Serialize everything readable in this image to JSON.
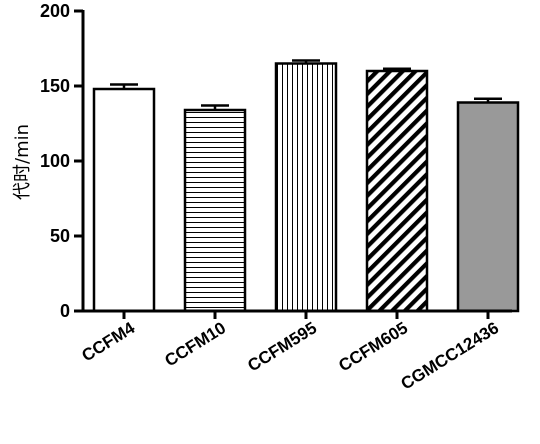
{
  "chart_data": {
    "type": "bar",
    "categories": [
      "CCFM4",
      "CCFM10",
      "CCFM595",
      "CCFM605",
      "CGMCC12436"
    ],
    "values": [
      148,
      134,
      165,
      160,
      139
    ],
    "errors": [
      3,
      3,
      2,
      1.5,
      2.5
    ],
    "patterns": [
      "solid-white",
      "horizontal-lines",
      "vertical-lines",
      "diagonal-lines",
      "solid-gray"
    ],
    "fill_colors": [
      "#ffffff",
      "#ffffff",
      "#ffffff",
      "#ffffff",
      "#999999"
    ],
    "ylabel": "代时/min",
    "ylim": [
      0,
      200
    ],
    "yticks": [
      "0",
      "50",
      "100",
      "150",
      "200"
    ],
    "grid": false,
    "legend": "none"
  }
}
